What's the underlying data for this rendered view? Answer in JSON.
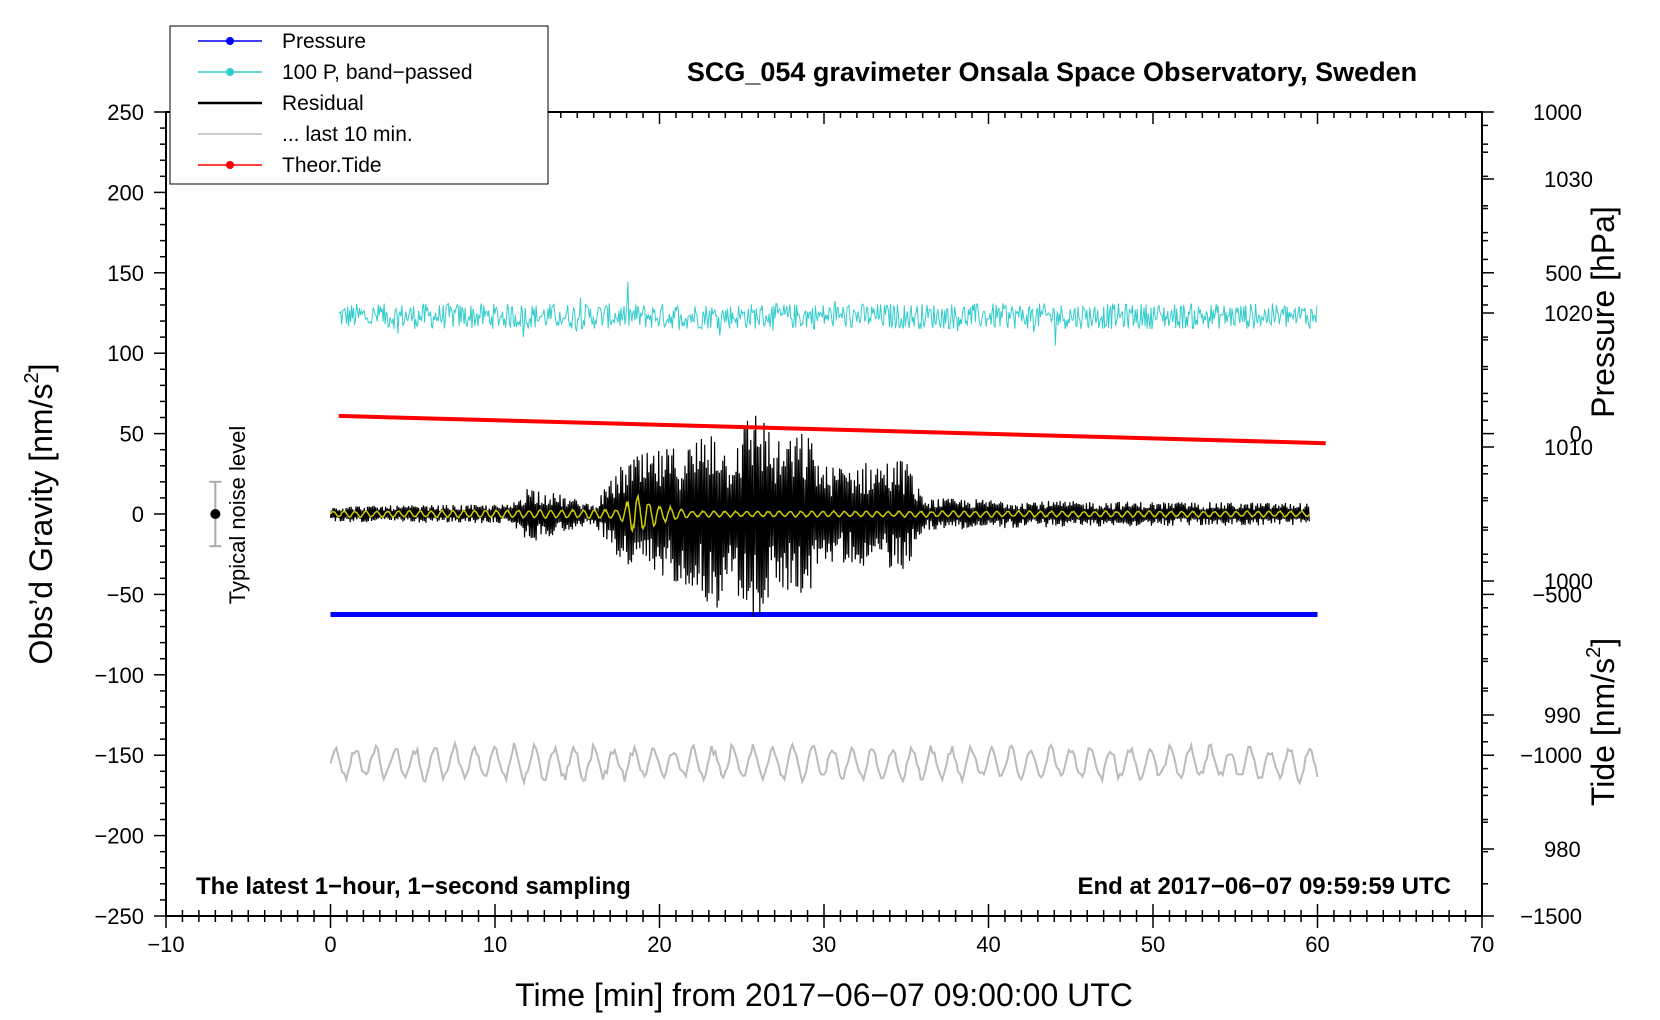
{
  "chart_data": {
    "type": "line",
    "title": "SCG_054 gravimeter Onsala Space Observatory, Sweden",
    "xlabel": "Time [min] from 2017−06−07 09:00:00 UTC",
    "ylabel_left_text": "Obs’d Gravity [nm/s",
    "ylabel_left_sup": "2",
    "ylabel_left_close": "]",
    "ylabel_right_pressure": "Pressure [hPa]",
    "ylabel_right_tide_text": "Tide [nm/s",
    "ylabel_right_tide_sup": "2",
    "ylabel_right_tide_close": "]",
    "xlim": [
      -10,
      70
    ],
    "ylim": [
      -250,
      250
    ],
    "pressure_axis_range": [
      975,
      1035
    ],
    "tide_axis_range": [
      -1500,
      1000
    ],
    "x_ticks": [
      "−10",
      "0",
      "10",
      "20",
      "30",
      "40",
      "50",
      "60",
      "70"
    ],
    "y_ticks": [
      "−250",
      "−200",
      "−150",
      "−100",
      "−50",
      "0",
      "50",
      "100",
      "150",
      "200",
      "250"
    ],
    "pressure_ticks": [
      "980",
      "990",
      "1000",
      "1010",
      "1020",
      "1030"
    ],
    "tide_ticks": [
      "−1500",
      "−1000",
      "−500",
      "0",
      "500",
      "1000"
    ],
    "noise_marker": {
      "label": "Typical noise level",
      "x": -7,
      "y": 0,
      "err": 20
    },
    "corner_left": "The latest 1−hour, 1−second sampling",
    "corner_right": "End at 2017−06−07 09:59:59 UTC",
    "legend": [
      {
        "label": "Pressure",
        "color": "#0000ff"
      },
      {
        "label": "100 P, band−passed",
        "color": "#33cccc"
      },
      {
        "label": "Residual",
        "color": "#000000"
      },
      {
        "label": "... last 10 min.",
        "color": "#bbbbbb"
      },
      {
        "label": "Theor.Tide",
        "color": "#ff0000"
      }
    ],
    "series": [
      {
        "name": "Pressure",
        "axis": "pressure",
        "color": "#0000ff",
        "x": [
          0,
          60
        ],
        "y": [
          997.5,
          997.5
        ]
      },
      {
        "name": "100 P, band−passed",
        "axis": "gravity",
        "color": "#33cccc",
        "x_range": [
          0.5,
          60
        ],
        "baseline": 123,
        "amplitude": 8
      },
      {
        "name": "Residual",
        "axis": "gravity",
        "color": "#000000",
        "x_range": [
          0,
          59.5
        ],
        "envelope": [
          [
            0,
            5
          ],
          [
            11,
            6
          ],
          [
            12,
            18
          ],
          [
            16,
            6
          ],
          [
            18,
            35
          ],
          [
            22,
            45
          ],
          [
            23.5,
            62
          ],
          [
            24,
            40
          ],
          [
            26,
            72
          ],
          [
            27,
            45
          ],
          [
            29,
            52
          ],
          [
            30,
            30
          ],
          [
            35,
            35
          ],
          [
            36,
            10
          ],
          [
            45,
            8
          ],
          [
            59.5,
            7
          ]
        ]
      },
      {
        "name": "Filtered (yellow)",
        "axis": "gravity",
        "color": "#cccc00",
        "x_range": [
          0,
          59.5
        ],
        "envelope": [
          [
            0,
            2
          ],
          [
            17.5,
            3
          ],
          [
            18.5,
            14
          ],
          [
            20,
            6
          ],
          [
            22,
            2
          ],
          [
            59.5,
            2
          ]
        ]
      },
      {
        "name": "... last 10 min.",
        "axis": "gravity",
        "color": "#bbbbbb",
        "x_range": [
          0,
          60
        ],
        "baseline": -155,
        "amplitude": 12
      },
      {
        "name": "Theor.Tide",
        "axis": "tide",
        "color": "#ff0000",
        "x": [
          0.5,
          60.5
        ],
        "y": [
          55,
          -30
        ]
      }
    ]
  }
}
